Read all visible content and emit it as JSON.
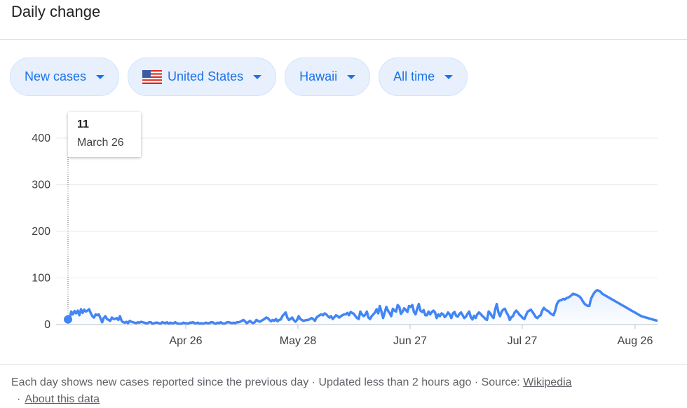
{
  "header": {
    "title": "Daily change"
  },
  "filters": {
    "metric": "New cases",
    "country": "United States",
    "region": "Hawaii",
    "range": "All time"
  },
  "tooltip": {
    "value": "11",
    "date": "March 26"
  },
  "colors": {
    "line": "#4285f4",
    "chip_text": "#1a73e8",
    "chip_bg": "#e8f0fe"
  },
  "footer": {
    "text": "Each day shows new cases reported since the previous day · Updated less than 2 hours ago · Source: ",
    "source_link": "Wikipedia",
    "separator": "·",
    "about_link": "About this data"
  },
  "chart_data": {
    "type": "area",
    "title": "",
    "xlabel": "",
    "ylabel": "",
    "ylim": [
      0,
      400
    ],
    "yticks": [
      0,
      100,
      200,
      300,
      400
    ],
    "xticks": [
      "Apr 26",
      "May 28",
      "Jun 27",
      "Jul 27",
      "Aug 26"
    ],
    "grid": true,
    "start_date": "March 26",
    "series": [
      {
        "values": [
          11,
          12,
          28,
          22,
          29,
          24,
          30,
          20,
          33,
          25,
          32,
          28,
          30,
          33,
          25,
          18,
          15,
          22,
          20,
          22,
          14,
          5,
          14,
          18,
          12,
          10,
          8,
          15,
          12,
          12,
          14,
          10,
          18,
          8,
          5,
          4,
          6,
          3,
          8,
          6,
          5,
          4,
          3,
          5,
          4,
          6,
          5,
          4,
          3,
          3,
          5,
          5,
          2,
          3,
          4,
          4,
          3,
          2,
          5,
          4,
          3,
          5,
          2,
          4,
          3,
          3,
          5,
          3,
          2,
          2,
          2,
          4,
          3,
          3,
          2,
          4,
          4,
          5,
          3,
          3,
          4,
          2,
          3,
          2,
          3,
          4,
          3,
          3,
          5,
          5,
          3,
          2,
          4,
          3,
          5,
          3,
          2,
          3,
          5,
          5,
          4,
          3,
          4,
          3,
          5,
          5,
          6,
          8,
          10,
          7,
          3,
          5,
          8,
          5,
          3,
          5,
          10,
          8,
          6,
          8,
          10,
          12,
          15,
          14,
          10,
          7,
          10,
          8,
          12,
          7,
          10,
          11,
          18,
          22,
          26,
          15,
          10,
          12,
          15,
          10,
          6,
          10,
          18,
          12,
          10,
          8,
          9,
          10,
          10,
          12,
          14,
          12,
          8,
          15,
          18,
          20,
          22,
          20,
          24,
          22,
          18,
          15,
          18,
          12,
          16,
          20,
          18,
          15,
          18,
          20,
          22,
          22,
          25,
          20,
          27,
          25,
          23,
          18,
          14,
          12,
          28,
          22,
          18,
          21,
          28,
          15,
          12,
          18,
          22,
          26,
          33,
          24,
          40,
          28,
          14,
          26,
          38,
          30,
          25,
          18,
          34,
          30,
          28,
          42,
          38,
          23,
          28,
          35,
          31,
          27,
          40,
          38,
          42,
          27,
          22,
          34,
          44,
          30,
          27,
          31,
          20,
          20,
          28,
          22,
          27,
          30,
          26,
          14,
          22,
          18,
          24,
          22,
          16,
          20,
          26,
          22,
          14,
          24,
          27,
          19,
          17,
          23,
          26,
          20,
          14,
          17,
          23,
          28,
          16,
          11,
          19,
          14,
          22,
          26,
          23,
          19,
          16,
          12,
          10,
          28,
          24,
          18,
          14,
          32,
          44,
          26,
          18,
          28,
          32,
          34,
          26,
          20,
          10,
          16,
          18,
          26,
          30,
          26,
          21,
          18,
          14,
          12,
          20,
          28,
          30,
          32,
          27,
          22,
          16,
          14,
          18,
          20,
          30,
          36,
          32,
          30,
          28,
          24,
          22,
          20,
          30,
          44,
          50,
          52,
          53,
          55,
          54,
          57,
          58,
          60,
          63,
          66,
          65,
          64,
          62,
          60,
          56,
          50,
          45,
          42,
          40,
          40,
          55,
          62,
          68,
          72,
          74,
          72,
          70,
          66,
          64,
          62,
          60,
          58,
          56,
          54,
          52,
          50,
          48,
          46,
          44,
          42,
          40,
          38,
          36,
          34,
          32,
          30,
          28,
          26,
          24,
          22,
          20,
          18,
          17,
          16,
          15,
          14,
          13,
          12,
          11,
          10,
          9,
          8
        ]
      }
    ]
  }
}
